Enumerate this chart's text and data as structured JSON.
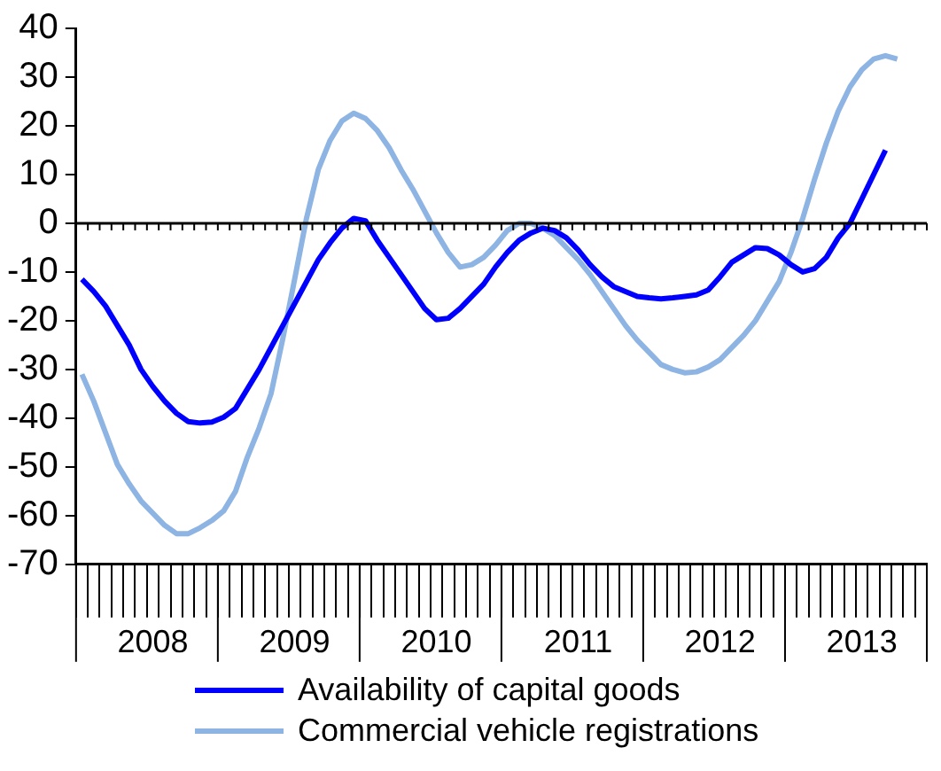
{
  "chart_data": {
    "type": "line",
    "categories": [
      null,
      null,
      null,
      null,
      null,
      null,
      "2008",
      null,
      null,
      null,
      null,
      null,
      null,
      null,
      null,
      null,
      null,
      null,
      "2009",
      null,
      null,
      null,
      null,
      null,
      null,
      null,
      null,
      null,
      null,
      null,
      "2010",
      null,
      null,
      null,
      null,
      null,
      null,
      null,
      null,
      null,
      null,
      null,
      "2011",
      null,
      null,
      null,
      null,
      null,
      null,
      null,
      null,
      null,
      null,
      null,
      "2012",
      null,
      null,
      null,
      null,
      null,
      null,
      null,
      null,
      null,
      null,
      null,
      "2013",
      null,
      null,
      null,
      null,
      null
    ],
    "series": [
      {
        "name": "Availability of capital goods",
        "color": "#0000ff",
        "values": [
          -11.5,
          -14,
          -17,
          -21,
          -25,
          -30,
          -33.5,
          -36.5,
          -39,
          -40.7,
          -41,
          -40.8,
          -39.8,
          -38,
          -34,
          -30,
          -25.5,
          -21,
          -16.5,
          -12,
          -7.5,
          -4,
          -1,
          1,
          0.5,
          -3.5,
          -7,
          -10.5,
          -14,
          -17.5,
          -19.8,
          -19.5,
          -17.5,
          -15,
          -12.5,
          -9,
          -6,
          -3.5,
          -2,
          -1,
          -1.5,
          -3,
          -5.5,
          -8.5,
          -11,
          -13,
          -14,
          -15,
          -15.3,
          -15.5,
          -15.3,
          -15,
          -14.7,
          -13.7,
          -11,
          -8,
          -6.5,
          -5,
          -5.2,
          -6.5,
          -8.5,
          -10,
          -9.3,
          -7,
          -3,
          0,
          5,
          10,
          15,
          null,
          null,
          null
        ]
      },
      {
        "name": "Commercial vehicle registrations",
        "color": "#8db4e2",
        "values": [
          -31,
          -36.5,
          -43,
          -49.5,
          -53.5,
          -57,
          -59.5,
          -62,
          -63.7,
          -63.7,
          -62.5,
          -61,
          -59,
          -55,
          -48,
          -42,
          -35,
          -23.7,
          -11.5,
          1,
          11,
          17,
          21,
          22.6,
          21.5,
          19,
          15.5,
          11,
          7,
          2.5,
          -2,
          -6,
          -9,
          -8.5,
          -7,
          -4.5,
          -1.5,
          0,
          0,
          -1,
          -2.5,
          -5,
          -7.5,
          -10.5,
          -14,
          -17.5,
          -21,
          -24,
          -26.5,
          -29,
          -30,
          -30.7,
          -30.5,
          -29.5,
          -28,
          -25.5,
          -23,
          -20,
          -16,
          -12,
          -6,
          1,
          9,
          16.5,
          23,
          28,
          31.5,
          33.7,
          34.4,
          33.7,
          null,
          null
        ]
      }
    ],
    "ylim": [
      -70,
      40
    ],
    "yticks": [
      -70,
      -60,
      -50,
      -40,
      -30,
      -20,
      -10,
      0,
      10,
      20,
      30,
      40
    ],
    "ref_lines": [
      {
        "axis": "y",
        "value": 0
      }
    ],
    "legend": "bottom",
    "marker": "none",
    "line_style": "solid"
  }
}
